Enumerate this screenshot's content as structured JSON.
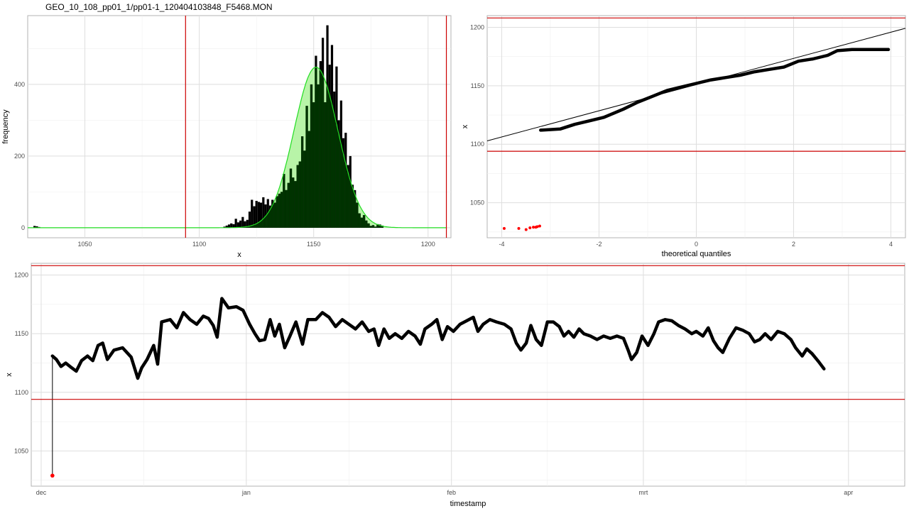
{
  "title": "GEO_10_108_pp01_1/pp01-1_120404103848_F5468.MON",
  "colors": {
    "outlier": "#ff0000",
    "limit": "#cc0000",
    "density_fill": "#b8f4a8",
    "density_line": "#22dd22",
    "overlap": "#003300",
    "bars": "#000000"
  },
  "chart_data": [
    {
      "id": "histogram",
      "type": "bar",
      "xlabel": "x",
      "ylabel": "frequency",
      "xlim": [
        1025,
        1210
      ],
      "ylim": [
        -28,
        592
      ],
      "xticks": [
        1050,
        1100,
        1150,
        1200
      ],
      "yticks": [
        0,
        200,
        400
      ],
      "limits_x": [
        1094,
        1208
      ],
      "bin_width": 1,
      "bins": [
        [
          1028,
          5
        ],
        [
          1029,
          4
        ],
        [
          1030,
          2
        ],
        [
          1111,
          3
        ],
        [
          1112,
          6
        ],
        [
          1113,
          9
        ],
        [
          1114,
          12
        ],
        [
          1115,
          10
        ],
        [
          1116,
          25
        ],
        [
          1117,
          15
        ],
        [
          1118,
          20
        ],
        [
          1119,
          30
        ],
        [
          1120,
          18
        ],
        [
          1121,
          22
        ],
        [
          1122,
          45
        ],
        [
          1123,
          78
        ],
        [
          1124,
          60
        ],
        [
          1125,
          75
        ],
        [
          1126,
          72
        ],
        [
          1127,
          70
        ],
        [
          1128,
          85
        ],
        [
          1129,
          65
        ],
        [
          1130,
          80
        ],
        [
          1131,
          62
        ],
        [
          1132,
          78
        ],
        [
          1133,
          70
        ],
        [
          1134,
          88
        ],
        [
          1135,
          95
        ],
        [
          1136,
          100
        ],
        [
          1137,
          150
        ],
        [
          1138,
          105
        ],
        [
          1139,
          125
        ],
        [
          1140,
          165
        ],
        [
          1141,
          140
        ],
        [
          1142,
          130
        ],
        [
          1143,
          175
        ],
        [
          1144,
          185
        ],
        [
          1145,
          255
        ],
        [
          1146,
          215
        ],
        [
          1147,
          340
        ],
        [
          1148,
          270
        ],
        [
          1149,
          400
        ],
        [
          1150,
          350
        ],
        [
          1151,
          480
        ],
        [
          1152,
          400
        ],
        [
          1153,
          465
        ],
        [
          1154,
          530
        ],
        [
          1155,
          350
        ],
        [
          1156,
          565
        ],
        [
          1157,
          455
        ],
        [
          1158,
          510
        ],
        [
          1159,
          380
        ],
        [
          1160,
          450
        ],
        [
          1161,
          300
        ],
        [
          1162,
          355
        ],
        [
          1163,
          250
        ],
        [
          1164,
          265
        ],
        [
          1165,
          175
        ],
        [
          1166,
          200
        ],
        [
          1167,
          120
        ],
        [
          1168,
          105
        ],
        [
          1169,
          70
        ],
        [
          1170,
          40
        ],
        [
          1171,
          28
        ],
        [
          1172,
          35
        ],
        [
          1173,
          20
        ],
        [
          1174,
          12
        ],
        [
          1175,
          5
        ],
        [
          1176,
          7
        ],
        [
          1177,
          3
        ],
        [
          1178,
          10
        ],
        [
          1179,
          9
        ],
        [
          1180,
          6
        ]
      ],
      "density": {
        "mean": 1151,
        "sd": 9.6,
        "peak": 448,
        "from": 1025,
        "to": 1208
      }
    },
    {
      "id": "qqplot",
      "type": "scatter",
      "xlabel": "theoretical quantiles",
      "ylabel": "x",
      "xlim": [
        -4.3,
        4.3
      ],
      "ylim": [
        1020,
        1210
      ],
      "xticks": [
        -4,
        -2,
        0,
        2,
        4
      ],
      "yticks": [
        1050,
        1100,
        1150,
        1200
      ],
      "limits_y": [
        1094,
        1208
      ],
      "reference_line": {
        "intercept": 1151,
        "slope": 11.2
      },
      "outliers": [
        [
          -3.95,
          1028
        ],
        [
          -3.65,
          1028
        ],
        [
          -3.5,
          1027
        ],
        [
          -3.42,
          1028.5
        ],
        [
          -3.35,
          1029
        ],
        [
          -3.3,
          1029
        ],
        [
          -3.27,
          1029.5
        ],
        [
          -3.22,
          1030
        ]
      ],
      "curve": [
        [
          -3.2,
          1112
        ],
        [
          -2.8,
          1113
        ],
        [
          -2.5,
          1117
        ],
        [
          -2.2,
          1120
        ],
        [
          -1.9,
          1123
        ],
        [
          -1.5,
          1130
        ],
        [
          -1.2,
          1136
        ],
        [
          -0.9,
          1141
        ],
        [
          -0.6,
          1146
        ],
        [
          -0.3,
          1149
        ],
        [
          0,
          1152
        ],
        [
          0.3,
          1155
        ],
        [
          0.6,
          1157
        ],
        [
          0.9,
          1159
        ],
        [
          1.2,
          1162
        ],
        [
          1.5,
          1164
        ],
        [
          1.8,
          1166
        ],
        [
          2.1,
          1171
        ],
        [
          2.4,
          1173
        ],
        [
          2.7,
          1176
        ],
        [
          2.9,
          1180
        ],
        [
          3.2,
          1181
        ],
        [
          3.5,
          1181
        ],
        [
          3.95,
          1181
        ]
      ]
    },
    {
      "id": "timeseries",
      "type": "line",
      "xlabel": "timestamp",
      "ylabel": "x",
      "xlim": [
        -1.5,
        130.5
      ],
      "ylim": [
        1020,
        1210
      ],
      "xticks": [
        {
          "value": 0,
          "label": "dec"
        },
        {
          "value": 31,
          "label": "jan"
        },
        {
          "value": 62,
          "label": "feb"
        },
        {
          "value": 91,
          "label": "mrt"
        },
        {
          "value": 122,
          "label": "apr"
        }
      ],
      "minor_ticks": [
        15.5,
        46.5,
        76.5,
        106.5
      ],
      "yticks": [
        1050,
        1100,
        1150,
        1200
      ],
      "limits_y": [
        1094,
        1208
      ],
      "outlier": [
        1.7,
        1029
      ],
      "series": [
        [
          1.7,
          1131
        ],
        [
          2.3,
          1128
        ],
        [
          3.0,
          1122
        ],
        [
          3.7,
          1125
        ],
        [
          4.6,
          1121
        ],
        [
          5.3,
          1118
        ],
        [
          6.1,
          1127
        ],
        [
          7.0,
          1131
        ],
        [
          7.8,
          1127
        ],
        [
          8.6,
          1140
        ],
        [
          9.3,
          1142
        ],
        [
          10.0,
          1128
        ],
        [
          11.0,
          1136
        ],
        [
          12.3,
          1138
        ],
        [
          13.6,
          1130
        ],
        [
          14.6,
          1112
        ],
        [
          15.2,
          1121
        ],
        [
          16.0,
          1128
        ],
        [
          17.0,
          1140
        ],
        [
          17.6,
          1124
        ],
        [
          18.2,
          1160
        ],
        [
          19.5,
          1162
        ],
        [
          20.5,
          1155
        ],
        [
          21.5,
          1168
        ],
        [
          22.5,
          1162
        ],
        [
          23.5,
          1158
        ],
        [
          24.5,
          1165
        ],
        [
          25.3,
          1163
        ],
        [
          26.0,
          1157
        ],
        [
          26.6,
          1147
        ],
        [
          27.3,
          1180
        ],
        [
          28.3,
          1172
        ],
        [
          29.5,
          1173
        ],
        [
          30.5,
          1170
        ],
        [
          31.5,
          1158
        ],
        [
          32.3,
          1150
        ],
        [
          33.0,
          1144
        ],
        [
          33.8,
          1145
        ],
        [
          34.6,
          1162
        ],
        [
          35.3,
          1148
        ],
        [
          36.0,
          1158
        ],
        [
          36.8,
          1138
        ],
        [
          37.6,
          1148
        ],
        [
          38.5,
          1160
        ],
        [
          39.5,
          1141
        ],
        [
          40.3,
          1162
        ],
        [
          41.5,
          1162
        ],
        [
          42.5,
          1168
        ],
        [
          43.5,
          1164
        ],
        [
          44.5,
          1156
        ],
        [
          45.5,
          1162
        ],
        [
          46.5,
          1158
        ],
        [
          47.5,
          1154
        ],
        [
          48.5,
          1160
        ],
        [
          49.5,
          1152
        ],
        [
          50.3,
          1154
        ],
        [
          51.0,
          1140
        ],
        [
          51.8,
          1154
        ],
        [
          52.6,
          1146
        ],
        [
          53.5,
          1150
        ],
        [
          54.5,
          1146
        ],
        [
          55.5,
          1152
        ],
        [
          56.5,
          1148
        ],
        [
          57.3,
          1141
        ],
        [
          58.0,
          1154
        ],
        [
          59.0,
          1158
        ],
        [
          59.8,
          1162
        ],
        [
          60.6,
          1145
        ],
        [
          61.4,
          1156
        ],
        [
          62.3,
          1152
        ],
        [
          63.3,
          1158
        ],
        [
          64.3,
          1161
        ],
        [
          65.3,
          1164
        ],
        [
          66.0,
          1152
        ],
        [
          66.8,
          1158
        ],
        [
          67.8,
          1162
        ],
        [
          68.8,
          1160
        ],
        [
          70.0,
          1158
        ],
        [
          71.0,
          1154
        ],
        [
          71.8,
          1142
        ],
        [
          72.5,
          1136
        ],
        [
          73.3,
          1142
        ],
        [
          74.0,
          1157
        ],
        [
          74.8,
          1145
        ],
        [
          75.6,
          1140
        ],
        [
          76.5,
          1160
        ],
        [
          77.4,
          1160
        ],
        [
          78.3,
          1156
        ],
        [
          79.0,
          1148
        ],
        [
          79.7,
          1152
        ],
        [
          80.5,
          1147
        ],
        [
          81.3,
          1154
        ],
        [
          82.0,
          1150
        ],
        [
          83.0,
          1148
        ],
        [
          84.0,
          1145
        ],
        [
          85.0,
          1148
        ],
        [
          86.0,
          1146
        ],
        [
          87.0,
          1148
        ],
        [
          88.0,
          1146
        ],
        [
          88.7,
          1136
        ],
        [
          89.2,
          1128
        ],
        [
          90.0,
          1134
        ],
        [
          90.8,
          1148
        ],
        [
          91.7,
          1140
        ],
        [
          92.6,
          1150
        ],
        [
          93.3,
          1160
        ],
        [
          94.3,
          1162
        ],
        [
          95.3,
          1161
        ],
        [
          96.3,
          1157
        ],
        [
          97.3,
          1154
        ],
        [
          98.3,
          1150
        ],
        [
          99.0,
          1152
        ],
        [
          100.0,
          1148
        ],
        [
          100.8,
          1155
        ],
        [
          101.6,
          1144
        ],
        [
          102.3,
          1138
        ],
        [
          103.0,
          1134
        ],
        [
          104.0,
          1146
        ],
        [
          105.0,
          1155
        ],
        [
          106.0,
          1153
        ],
        [
          107.0,
          1150
        ],
        [
          107.8,
          1143
        ],
        [
          108.6,
          1145
        ],
        [
          109.4,
          1150
        ],
        [
          110.3,
          1145
        ],
        [
          111.3,
          1152
        ],
        [
          112.3,
          1150
        ],
        [
          113.3,
          1145
        ],
        [
          114.0,
          1138
        ],
        [
          115.0,
          1131
        ],
        [
          115.7,
          1137
        ],
        [
          116.5,
          1133
        ],
        [
          117.5,
          1126
        ],
        [
          118.3,
          1120
        ]
      ]
    }
  ]
}
